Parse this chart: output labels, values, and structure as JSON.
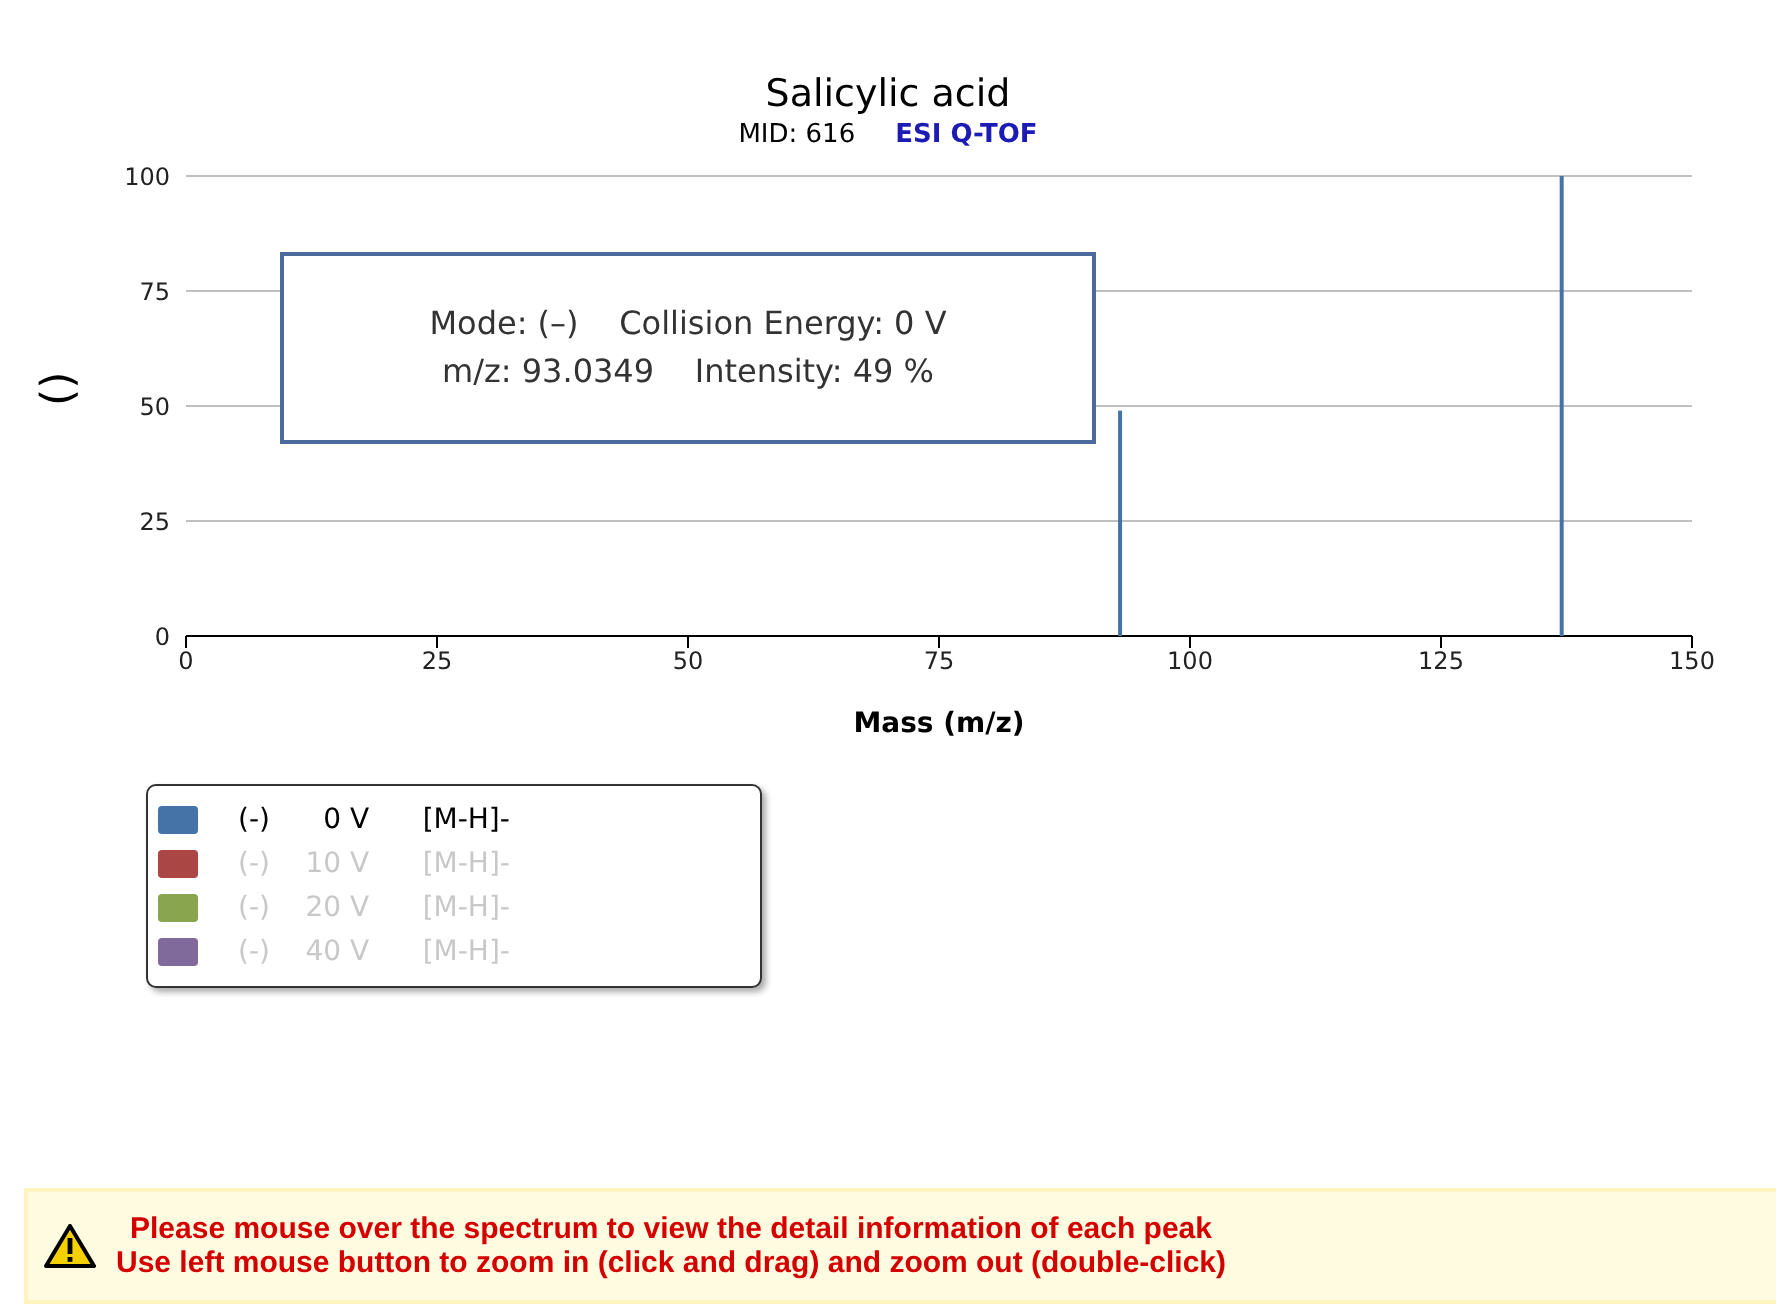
{
  "chart_data": {
    "type": "bar",
    "title": "Salicylic acid",
    "subtitle": "MID: 616",
    "ylabel": "()",
    "xlabel": "Mass (m/z)",
    "x": [
      93.0349,
      137.02
    ],
    "series": [
      {
        "name": "(-)      0 V      [M-H]-",
        "color": "#4572a7",
        "values": [
          49,
          100
        ]
      },
      {
        "name": "(-)    10 V      [M-H]-",
        "color": "#aa4643",
        "values": [
          null,
          null
        ]
      },
      {
        "name": "(-)    20 V      [M-H]-",
        "color": "#89a54e",
        "values": [
          null,
          null
        ]
      },
      {
        "name": "(-)    40 V      [M-H]-",
        "color": "#80699b",
        "values": [
          null,
          null
        ]
      }
    ],
    "xlim": [
      0,
      150
    ],
    "xticks": [
      0,
      25,
      50,
      75,
      100,
      125,
      150
    ],
    "ylim": [
      0,
      100
    ],
    "yticks": [
      0,
      25,
      50,
      75,
      100
    ],
    "grid": "y",
    "legend": "bottom left",
    "annotations": [
      "ESI Q-TOF",
      "Mode: (–)    Collision Energy: 0 V\nm/z: 93.0349    Intensity: 49 %",
      "Please mouse over the spectrum to view the detail information of each peak\nUse left mouse button to zoom in (click and drag) and zoom out (double-click)"
    ]
  }
}
